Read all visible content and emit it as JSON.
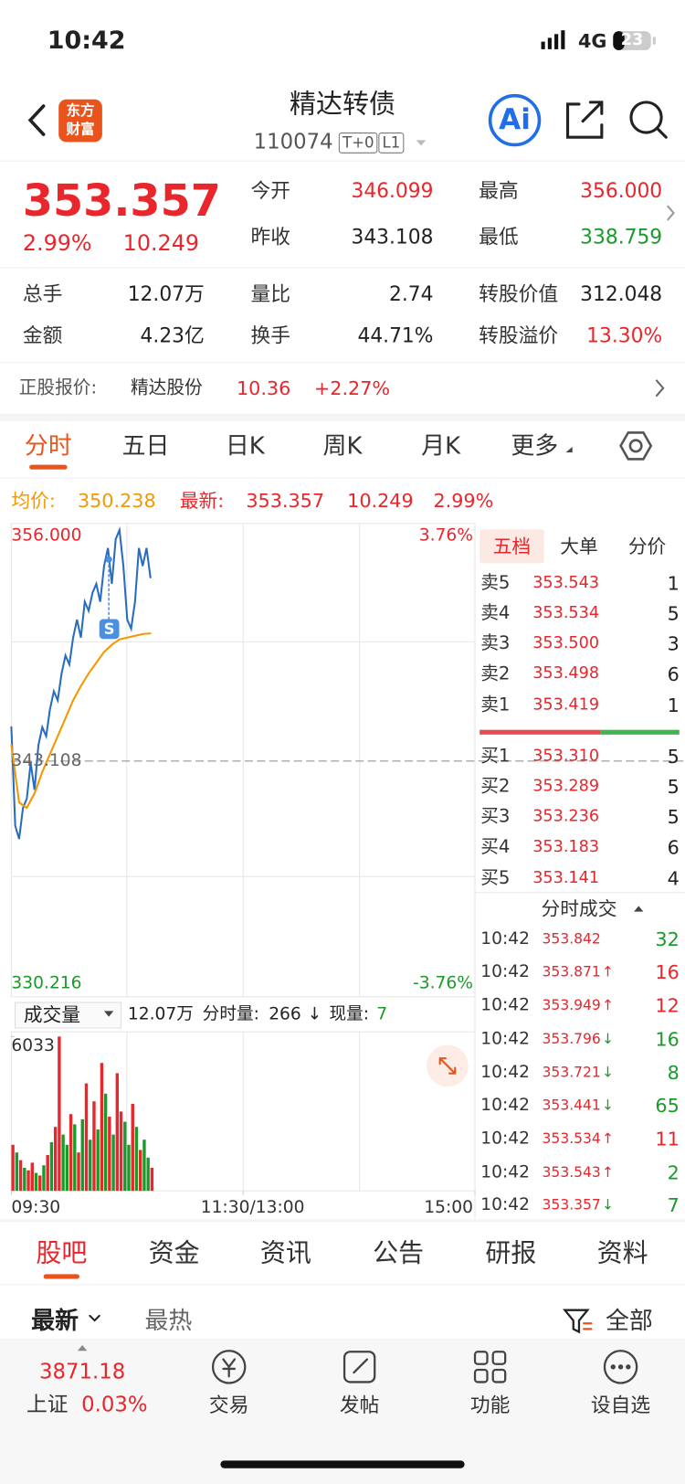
{
  "status": {
    "time": "10:42",
    "network": "4G",
    "battery": "23"
  },
  "header": {
    "logo": [
      "东方",
      "财富"
    ],
    "title": "精达转债",
    "code": "110074",
    "tags": [
      "T+0",
      "L1"
    ],
    "ai": "Ai"
  },
  "quote": {
    "price": "353.357",
    "pct": "2.99%",
    "change": "10.249",
    "stats": [
      {
        "label": "今开",
        "value": "346.099",
        "color": "red"
      },
      {
        "label": "最高",
        "value": "356.000",
        "color": "red"
      },
      {
        "label": "昨收",
        "value": "343.108",
        "color": "dark"
      },
      {
        "label": "最低",
        "value": "338.759",
        "color": "green"
      },
      {
        "label": "总手",
        "value": "12.07万",
        "color": "dark"
      },
      {
        "label": "量比",
        "value": "2.74",
        "color": "dark"
      },
      {
        "label": "转股价值",
        "value": "312.048",
        "color": "dark"
      },
      {
        "label": "金额",
        "value": "4.23亿",
        "color": "dark"
      },
      {
        "label": "换手",
        "value": "44.71%",
        "color": "dark"
      },
      {
        "label": "转股溢价",
        "value": "13.30%",
        "color": "red"
      }
    ]
  },
  "stock": {
    "label": "正股报价:",
    "name": "精达股份",
    "price": "10.36",
    "pct": "+2.27%"
  },
  "tabs": {
    "items": [
      "分时",
      "五日",
      "日K",
      "周K",
      "月K",
      "更多"
    ],
    "active": 0
  },
  "legend": {
    "avg_label": "均价:",
    "avg": "350.238",
    "last_label": "最新:",
    "last": "353.357",
    "change": "10.249",
    "pct": "2.99%"
  },
  "chart_data": [
    {
      "type": "line",
      "ylim": [
        330.216,
        356
      ],
      "yticks": [
        {
          "value": 356,
          "label": "356.000"
        },
        {
          "value": 343.108,
          "label": "343.108"
        },
        {
          "value": 330.216,
          "label": "330.216"
        }
      ],
      "y2lim": [
        -3.76,
        3.76
      ],
      "y2ticks": [
        {
          "value": 3.76,
          "label": "3.76%"
        },
        {
          "value": -3.76,
          "label": "-3.76%"
        }
      ],
      "xlim": [
        0,
        240
      ],
      "xticks": [
        {
          "value": 0,
          "label": "09:30"
        },
        {
          "value": 120,
          "label": "11:30/13:00"
        },
        {
          "value": 240,
          "label": "15:00"
        }
      ],
      "marker": "S",
      "series": [
        {
          "color": "#2a6dc0",
          "x": [
            0,
            2,
            4,
            6,
            8,
            10,
            12,
            14,
            16,
            18,
            20,
            22,
            24,
            26,
            28,
            30,
            32,
            34,
            36,
            38,
            40,
            42,
            44,
            46,
            48,
            50,
            52,
            54,
            56,
            58,
            60,
            62,
            64,
            66,
            68,
            70,
            72
          ],
          "values": [
            345,
            339.5,
            338.759,
            340.5,
            341,
            343,
            341.5,
            344,
            345,
            344.5,
            346,
            347,
            346.5,
            348,
            349,
            348.5,
            350,
            351,
            350,
            352,
            351.5,
            352.5,
            353,
            352,
            354,
            355,
            353,
            355.5,
            356,
            354,
            351,
            350.5,
            352,
            355,
            354,
            355,
            353.357
          ]
        },
        {
          "color": "#f39800",
          "x": [
            0,
            4,
            8,
            12,
            16,
            20,
            24,
            28,
            32,
            36,
            40,
            44,
            48,
            52,
            56,
            60,
            64,
            68,
            72
          ],
          "values": [
            344,
            340.8,
            340.5,
            341.3,
            342.5,
            343.5,
            344.5,
            345.5,
            346.5,
            347.3,
            348,
            348.6,
            349.2,
            349.6,
            349.9,
            350,
            350.1,
            350.2,
            350.238
          ]
        }
      ]
    },
    {
      "type": "bar",
      "label": "成交量",
      "total": "12.07万",
      "minute_label": "分时量:",
      "minute": "266",
      "arrow": "↓",
      "current_label": "现量:",
      "current": "7",
      "ylim": [
        0,
        6033
      ],
      "yticks": [
        6033
      ],
      "xlim": [
        0,
        240
      ],
      "x": [
        0,
        2,
        4,
        6,
        8,
        10,
        12,
        14,
        16,
        18,
        20,
        22,
        24,
        26,
        28,
        30,
        32,
        34,
        36,
        38,
        40,
        42,
        44,
        46,
        48,
        50,
        52,
        54,
        56,
        58,
        60,
        62,
        64,
        66,
        68,
        70,
        72
      ],
      "values": [
        1800,
        1500,
        1200,
        900,
        800,
        1100,
        700,
        600,
        1000,
        1400,
        1900,
        2500,
        6033,
        2200,
        1800,
        3000,
        2600,
        1500,
        2800,
        4200,
        2000,
        3500,
        2400,
        5000,
        3800,
        2900,
        2200,
        4600,
        3100,
        2700,
        1800,
        3400,
        2500,
        1600,
        2000,
        1300,
        900
      ],
      "colors": [
        "red",
        "green",
        "red",
        "green",
        "red",
        "red",
        "green",
        "red",
        "green",
        "red",
        "green",
        "red",
        "red",
        "green",
        "green",
        "red",
        "green",
        "red",
        "green",
        "red",
        "green",
        "red",
        "green",
        "red",
        "green",
        "red",
        "green",
        "red",
        "red",
        "green",
        "green",
        "red",
        "green",
        "red",
        "green",
        "green",
        "red"
      ]
    }
  ],
  "book": {
    "tabs": [
      "五档",
      "大单",
      "分价"
    ],
    "sell": [
      {
        "label": "卖5",
        "price": "353.543",
        "vol": "1"
      },
      {
        "label": "卖4",
        "price": "353.534",
        "vol": "5"
      },
      {
        "label": "卖3",
        "price": "353.500",
        "vol": "3"
      },
      {
        "label": "卖2",
        "price": "353.498",
        "vol": "6"
      },
      {
        "label": "卖1",
        "price": "353.419",
        "vol": "1"
      }
    ],
    "buy": [
      {
        "label": "买1",
        "price": "353.310",
        "vol": "5"
      },
      {
        "label": "买2",
        "price": "353.289",
        "vol": "5"
      },
      {
        "label": "买3",
        "price": "353.236",
        "vol": "5"
      },
      {
        "label": "买4",
        "price": "353.183",
        "vol": "6"
      },
      {
        "label": "买5",
        "price": "353.141",
        "vol": "4"
      }
    ]
  },
  "trades": {
    "title": "分时成交",
    "rows": [
      {
        "time": "10:42",
        "price": "353.842",
        "vol": "32",
        "color": "green"
      },
      {
        "time": "10:42",
        "price": "353.871",
        "arrow": "↑",
        "vol": "16",
        "color": "red"
      },
      {
        "time": "10:42",
        "price": "353.949",
        "arrow": "↑",
        "vol": "12",
        "color": "red"
      },
      {
        "time": "10:42",
        "price": "353.796",
        "arrow": "↓",
        "vol": "16",
        "color": "green"
      },
      {
        "time": "10:42",
        "price": "353.721",
        "arrow": "↓",
        "vol": "8",
        "color": "green"
      },
      {
        "time": "10:42",
        "price": "353.441",
        "arrow": "↓",
        "vol": "65",
        "color": "green"
      },
      {
        "time": "10:42",
        "price": "353.534",
        "arrow": "↑",
        "vol": "11",
        "color": "red"
      },
      {
        "time": "10:42",
        "price": "353.543",
        "arrow": "↑",
        "vol": "2",
        "color": "green"
      },
      {
        "time": "10:42",
        "price": "353.357",
        "arrow": "↓",
        "vol": "7",
        "color": "green"
      }
    ]
  },
  "sections": {
    "items": [
      "股吧",
      "资金",
      "资讯",
      "公告",
      "研报",
      "资料"
    ],
    "active": 0
  },
  "feed": {
    "sort": [
      "最新",
      "最热"
    ],
    "filter": "全部"
  },
  "nav": {
    "index_value": "3871.18",
    "index_name": "上证",
    "index_pct": "0.03%",
    "items": [
      "交易",
      "发帖",
      "功能",
      "设自选"
    ]
  }
}
